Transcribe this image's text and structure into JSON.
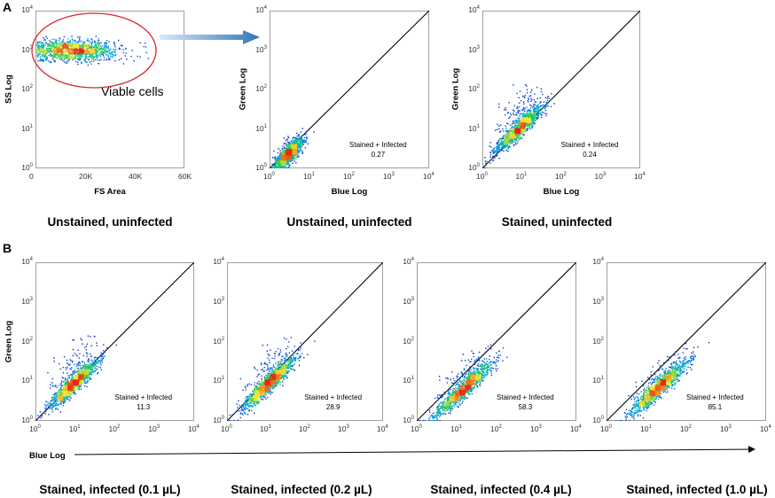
{
  "panel_letters": {
    "a": "A",
    "b": "B"
  },
  "arrow_bottom_label": "Blue Log",
  "chart_data": [
    {
      "type": "scatter",
      "id": "A1",
      "xlabel": "FS Area",
      "ylabel": "SS Log",
      "x_scale": "linear",
      "y_scale": "log",
      "xlim": [
        0,
        60000
      ],
      "ylim": [
        1,
        10000
      ],
      "x_ticks": [
        "0",
        "20K",
        "40K",
        "60K"
      ],
      "y_ticks": [
        "10^0",
        "10^1",
        "10^2",
        "10^3",
        "10^4"
      ],
      "gate_label": "Viable cells",
      "diagonal": false,
      "caption": "Unstained, uninfected",
      "cluster": {
        "x_center": 15000,
        "x_sd": 9000,
        "log_y_center": 3.0,
        "log_y_sd": 0.13
      }
    },
    {
      "type": "scatter",
      "id": "A2",
      "xlabel": "Blue Log",
      "ylabel": "Green Log",
      "x_scale": "log",
      "y_scale": "log",
      "xlim": [
        1,
        10000
      ],
      "ylim": [
        1,
        10000
      ],
      "x_ticks": [
        "10^0",
        "10^1",
        "10^2",
        "10^3",
        "10^4"
      ],
      "y_ticks": [
        "10^0",
        "10^1",
        "10^2",
        "10^3",
        "10^4"
      ],
      "diagonal": true,
      "annotation_label": "Stained + Infected",
      "annotation_value": "0.27",
      "caption": "Unstained, uninfected",
      "cluster": {
        "log_x_center": 0.45,
        "log_y_center": 0.35,
        "spread": 0.18,
        "tail": 0.15
      }
    },
    {
      "type": "scatter",
      "id": "A3",
      "xlabel": "Blue Log",
      "ylabel": "Green Log",
      "x_scale": "log",
      "y_scale": "log",
      "xlim": [
        1,
        10000
      ],
      "ylim": [
        1,
        10000
      ],
      "x_ticks": [
        "10^0",
        "10^1",
        "10^2",
        "10^3",
        "10^4"
      ],
      "y_ticks": [
        "10^0",
        "10^1",
        "10^2",
        "10^3",
        "10^4"
      ],
      "diagonal": true,
      "annotation_label": "Stained + Infected",
      "annotation_value": "0.24",
      "caption": "Stained, uninfected",
      "cluster": {
        "log_x_center": 0.9,
        "log_y_center": 1.0,
        "spread": 0.3,
        "tail": 0.45
      }
    },
    {
      "type": "scatter",
      "id": "B1",
      "xlabel": "",
      "ylabel": "Green Log",
      "x_scale": "log",
      "y_scale": "log",
      "xlim": [
        1,
        10000
      ],
      "ylim": [
        1,
        10000
      ],
      "x_ticks": [
        "10^0",
        "10^1",
        "10^2",
        "10^3",
        "10^4"
      ],
      "y_ticks": [
        "10^0",
        "10^1",
        "10^2",
        "10^3",
        "10^4"
      ],
      "diagonal": true,
      "annotation_label": "Stained + Infected",
      "annotation_value": "11.3",
      "caption": "Stained, infected (0.1 µL)",
      "cluster": {
        "log_x_center": 0.95,
        "log_y_center": 0.95,
        "spread": 0.3,
        "tail": 0.45
      }
    },
    {
      "type": "scatter",
      "id": "B2",
      "xlabel": "",
      "ylabel": "",
      "x_scale": "log",
      "y_scale": "log",
      "xlim": [
        1,
        10000
      ],
      "ylim": [
        1,
        10000
      ],
      "x_ticks": [
        "10^0",
        "10^1",
        "10^2",
        "10^3",
        "10^4"
      ],
      "y_ticks": [
        "10^0",
        "10^1",
        "10^2",
        "10^3",
        "10^4"
      ],
      "diagonal": true,
      "annotation_label": "Stained + Infected",
      "annotation_value": "28.9",
      "caption": "Stained, infected (0.2 µL)",
      "cluster": {
        "log_x_center": 1.05,
        "log_y_center": 0.95,
        "spread": 0.33,
        "tail": 0.4
      }
    },
    {
      "type": "scatter",
      "id": "B3",
      "xlabel": "",
      "ylabel": "",
      "x_scale": "log",
      "y_scale": "log",
      "xlim": [
        1,
        10000
      ],
      "ylim": [
        1,
        10000
      ],
      "x_ticks": [
        "10^0",
        "10^1",
        "10^2",
        "10^3",
        "10^4"
      ],
      "y_ticks": [
        "10^0",
        "10^1",
        "10^2",
        "10^3",
        "10^4"
      ],
      "diagonal": true,
      "annotation_label": "Stained + Infected",
      "annotation_value": "58.3",
      "caption": "Stained, infected (0.4 µL)",
      "cluster": {
        "log_x_center": 1.15,
        "log_y_center": 0.8,
        "spread": 0.36,
        "tail": 0.35
      }
    },
    {
      "type": "scatter",
      "id": "B4",
      "xlabel": "",
      "ylabel": "",
      "x_scale": "log",
      "y_scale": "log",
      "xlim": [
        1,
        10000
      ],
      "ylim": [
        1,
        10000
      ],
      "x_ticks": [
        "10^0",
        "10^1",
        "10^2",
        "10^3",
        "10^4"
      ],
      "y_ticks": [
        "10^0",
        "10^1",
        "10^2",
        "10^3",
        "10^4"
      ],
      "diagonal": true,
      "annotation_label": "Stained + Infected",
      "annotation_value": "85.1",
      "caption": "Stained, infected (1.0 µL)",
      "cluster": {
        "log_x_center": 1.3,
        "log_y_center": 0.85,
        "spread": 0.35,
        "tail": 0.25
      }
    }
  ]
}
